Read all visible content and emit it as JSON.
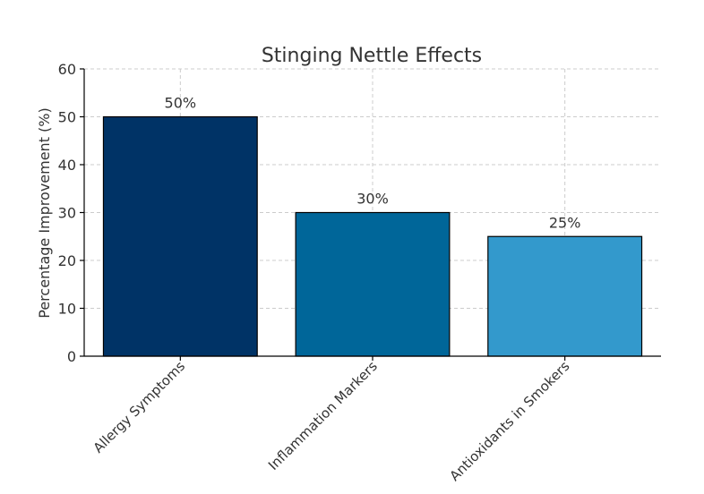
{
  "chart_data": {
    "type": "bar",
    "title": "Stinging Nettle Effects",
    "xlabel": "",
    "ylabel": "Percentage Improvement (%)",
    "categories": [
      "Allergy Symptoms",
      "Inflammation Markers",
      "Antioxidants in Smokers"
    ],
    "values": [
      50,
      30,
      25
    ],
    "data_labels": [
      "50%",
      "30%",
      "25%"
    ],
    "colors": [
      "#003366",
      "#006699",
      "#3399cc"
    ],
    "ylim": [
      0,
      60
    ],
    "yticks": [
      0,
      10,
      20,
      30,
      40,
      50,
      60
    ],
    "grid": true
  }
}
